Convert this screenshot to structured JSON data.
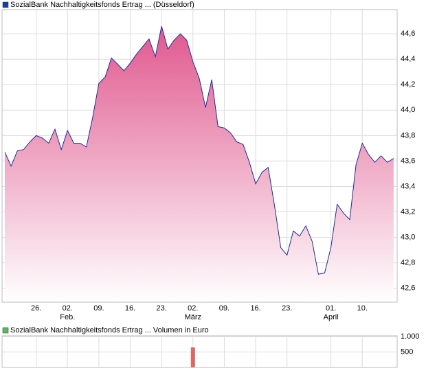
{
  "chart_data": [
    {
      "type": "area",
      "title": "SozialBank Nachhaltigkeitsfonds Ertrag ... (Düsseldorf)",
      "legend_color": "#1a3f99",
      "color": "#e2689a",
      "line_color": "#1f2a9c",
      "values": [
        43.67,
        43.56,
        43.68,
        43.69,
        43.75,
        43.8,
        43.78,
        43.74,
        43.85,
        43.69,
        43.84,
        43.74,
        43.74,
        43.71,
        43.94,
        44.21,
        44.26,
        44.41,
        44.36,
        44.31,
        44.37,
        44.44,
        44.5,
        44.56,
        44.42,
        44.66,
        44.48,
        44.55,
        44.6,
        44.55,
        44.38,
        44.25,
        44.02,
        44.24,
        43.87,
        43.86,
        43.82,
        43.75,
        43.73,
        43.59,
        43.42,
        43.51,
        43.55,
        43.25,
        42.92,
        42.86,
        43.05,
        43.01,
        43.09,
        42.97,
        42.71,
        42.72,
        42.92,
        43.26,
        43.19,
        43.14,
        43.57,
        43.74,
        43.65,
        43.59,
        43.64,
        43.59,
        43.62
      ],
      "xlim": [
        -0.44,
        62.56
      ],
      "xticks": [
        {
          "value": 5,
          "label": "26."
        },
        {
          "value": 10,
          "label": "02."
        },
        {
          "value": 15,
          "label": "09."
        },
        {
          "value": 20,
          "label": "16."
        },
        {
          "value": 25,
          "label": "23."
        },
        {
          "value": 30,
          "label": "02."
        },
        {
          "value": 35,
          "label": "09."
        },
        {
          "value": 40,
          "label": "16."
        },
        {
          "value": 45,
          "label": "23."
        },
        {
          "value": 52,
          "label": "01."
        },
        {
          "value": 57,
          "label": "10."
        }
      ],
      "month_ticks": [
        {
          "value": 10,
          "label": "Feb."
        },
        {
          "value": 30,
          "label": "März"
        },
        {
          "value": 52,
          "label": "April"
        }
      ],
      "ylim": [
        42.49,
        44.79
      ],
      "yticks": [
        {
          "value": 42.6,
          "label": "42,6"
        },
        {
          "value": 42.8,
          "label": "42,8"
        },
        {
          "value": 43.0,
          "label": "43,0"
        },
        {
          "value": 43.2,
          "label": "43,2"
        },
        {
          "value": 43.4,
          "label": "43,4"
        },
        {
          "value": 43.6,
          "label": "43,6"
        },
        {
          "value": 43.8,
          "label": "43,8"
        },
        {
          "value": 44.0,
          "label": "44,0"
        },
        {
          "value": 44.2,
          "label": "44,2"
        },
        {
          "value": 44.4,
          "label": "44,4"
        },
        {
          "value": 44.6,
          "label": "44,6"
        }
      ],
      "grid": true
    },
    {
      "type": "bar",
      "title": "SozialBank Nachhaltigkeitsfonds Ertrag ... Volumen in Euro",
      "legend_color": "#5cb85c",
      "color": "#e06666",
      "values": [
        0,
        0,
        0,
        0,
        0,
        0,
        0,
        0,
        0,
        0,
        0,
        0,
        0,
        0,
        0,
        0,
        0,
        0,
        0,
        0,
        0,
        0,
        0,
        0,
        0,
        0,
        0,
        0,
        0,
        0,
        650,
        0,
        0,
        0,
        0,
        0,
        0,
        0,
        0,
        0,
        0,
        0,
        0,
        0,
        0,
        0,
        0,
        0,
        0,
        0,
        0,
        0,
        0,
        0,
        0,
        0,
        0,
        0,
        0,
        0,
        0,
        0,
        0
      ],
      "xlim": [
        -0.44,
        62.56
      ],
      "xticks": [
        5,
        10,
        15,
        20,
        25,
        30,
        35,
        40,
        45,
        52,
        57
      ],
      "ylim": [
        0,
        1000
      ],
      "yticks": [
        500,
        {
          "value": 1000,
          "label": "1.000"
        }
      ],
      "grid": true
    }
  ]
}
